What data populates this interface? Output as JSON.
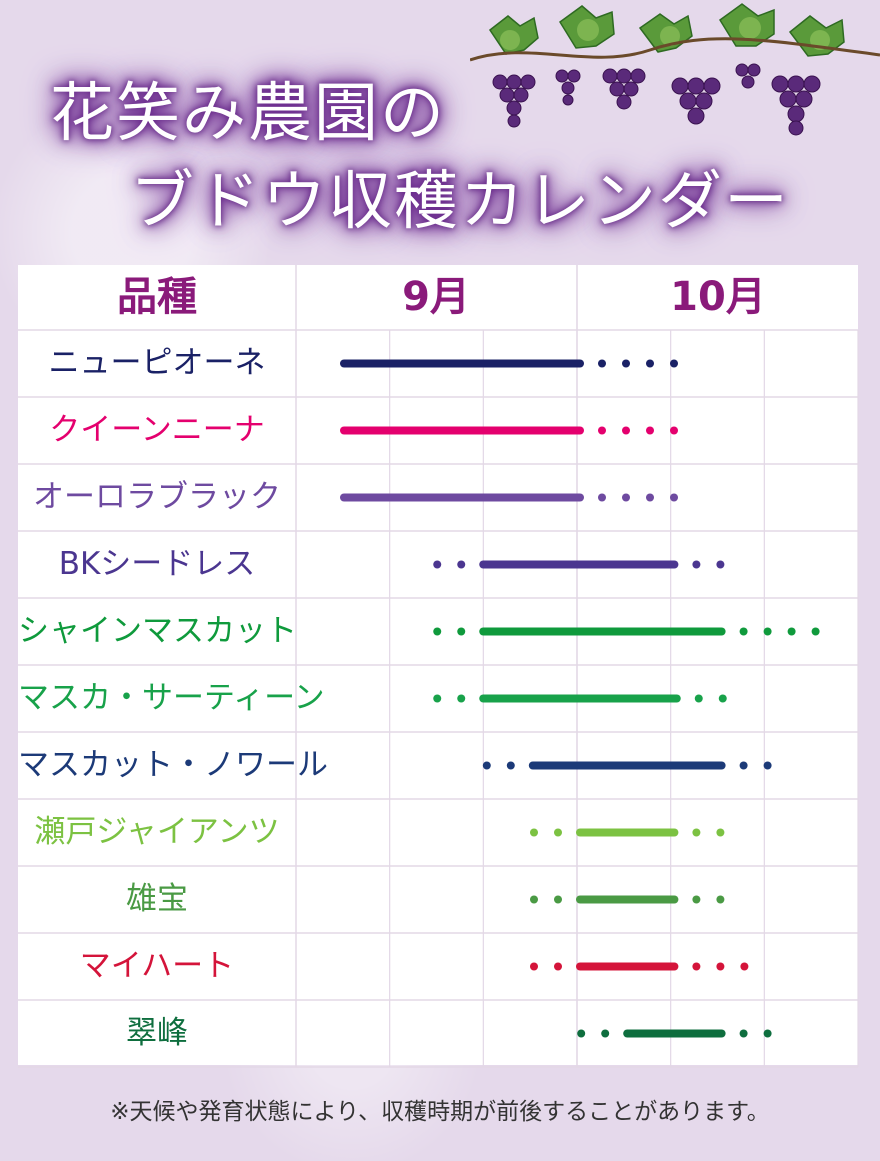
{
  "title": {
    "line1": "花笑み農園の",
    "line2": "ブドウ収穫カレンダー"
  },
  "header": {
    "variety_label": "品種",
    "months": [
      "9月",
      "10月"
    ]
  },
  "colors": {
    "header_text": "#8a1a7a",
    "grid": "#e3d8e6",
    "background": "#e5d9eb"
  },
  "rows": [
    {
      "name": "ニューピオーネ",
      "color": "#1a2166",
      "pre_dots": 0,
      "line": [
        0.0,
        0.5
      ],
      "post_dots": 4
    },
    {
      "name": "クイーンニーナ",
      "color": "#e4006e",
      "pre_dots": 0,
      "line": [
        0.0,
        0.5
      ],
      "post_dots": 4
    },
    {
      "name": "オーロラブラック",
      "color": "#6e4aa0",
      "pre_dots": 0,
      "line": [
        0.0,
        0.5
      ],
      "post_dots": 4
    },
    {
      "name": "BKシードレス",
      "color": "#4b3690",
      "pre_dots": 2,
      "line": [
        0.295,
        0.7
      ],
      "post_dots": 2
    },
    {
      "name": "シャインマスカット",
      "color": "#0f9a3c",
      "pre_dots": 2,
      "line": [
        0.295,
        0.8
      ],
      "post_dots": 4
    },
    {
      "name": "マスカ・サーティーン",
      "color": "#18a24a",
      "pre_dots": 2,
      "line": [
        0.295,
        0.705
      ],
      "post_dots": 2
    },
    {
      "name": "マスカット・ノワール",
      "color": "#1c3a78",
      "pre_dots": 2,
      "line": [
        0.4,
        0.8
      ],
      "post_dots": 2
    },
    {
      "name": "瀬戸ジャイアンツ",
      "color": "#7cc242",
      "pre_dots": 2,
      "line": [
        0.5,
        0.7
      ],
      "post_dots": 2
    },
    {
      "name": "雄宝",
      "color": "#4a9a44",
      "pre_dots": 2,
      "line": [
        0.5,
        0.7
      ],
      "post_dots": 2
    },
    {
      "name": "マイハート",
      "color": "#d4143a",
      "pre_dots": 2,
      "line": [
        0.5,
        0.7
      ],
      "post_dots": 3
    },
    {
      "name": "翠峰",
      "color": "#0e6e3e",
      "pre_dots": 2,
      "line": [
        0.6,
        0.8
      ],
      "post_dots": 2
    }
  ],
  "footnote": "※天候や発育状態により、収穫時期が前後することがあります。"
}
